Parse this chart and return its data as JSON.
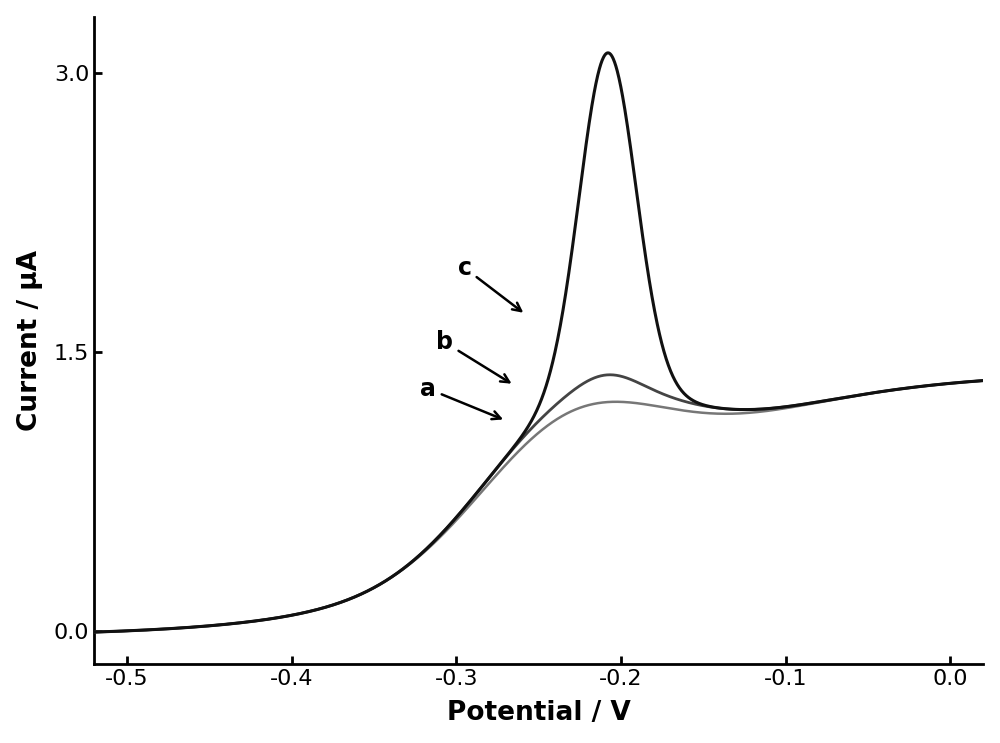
{
  "title": "",
  "xlabel": "Potential / V",
  "ylabel": "Current / μA",
  "xlim": [
    -0.52,
    0.02
  ],
  "ylim": [
    -0.18,
    3.3
  ],
  "xticks": [
    -0.5,
    -0.4,
    -0.3,
    -0.2,
    -0.1,
    0.0
  ],
  "yticks": [
    0.0,
    1.5,
    3.0
  ],
  "ytick_labels": [
    "0.0",
    "1.5",
    "3.0"
  ],
  "background_color": "#ffffff",
  "curve_color_a": "#777777",
  "curve_color_b": "#444444",
  "curve_color_c": "#111111",
  "label_a": "a",
  "label_b": "b",
  "label_c": "c",
  "label_fontsize": 17,
  "axis_fontsize": 19,
  "tick_fontsize": 16,
  "linewidth_ab": 1.8,
  "linewidth_c": 2.0
}
